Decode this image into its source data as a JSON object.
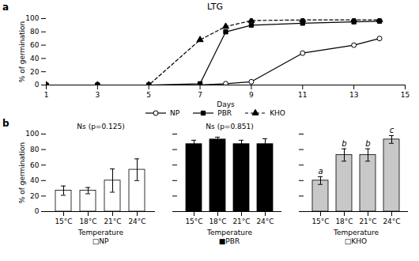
{
  "chart_data": [
    {
      "type": "line",
      "panel_label": "a",
      "title": "LTG",
      "x_label": "Days",
      "y_label": "% of germination",
      "xlim": [
        1,
        15
      ],
      "xticks": [
        1,
        3,
        5,
        7,
        9,
        11,
        13,
        15
      ],
      "ylim": [
        0,
        100
      ],
      "yticks": [
        0,
        20,
        40,
        60,
        80,
        100
      ],
      "grid": false,
      "legend": "bottom",
      "series": [
        {
          "name": "NP",
          "color": "black",
          "marker": "open_circle",
          "line_style": "solid",
          "x": [
            1,
            3,
            5,
            7,
            8,
            9,
            11,
            13,
            14
          ],
          "values": [
            0,
            0,
            0,
            0,
            2,
            5,
            48,
            60,
            70
          ]
        },
        {
          "name": "PBR",
          "color": "black",
          "marker": "square",
          "line_style": "solid",
          "x": [
            1,
            3,
            5,
            7,
            8,
            9,
            11,
            13,
            14
          ],
          "values": [
            0,
            0,
            0,
            2,
            80,
            90,
            93,
            95,
            96
          ]
        },
        {
          "name": "KHO",
          "color": "black",
          "marker": "triangle",
          "line_style": "dashed",
          "x": [
            1,
            3,
            5,
            7,
            8,
            9,
            11,
            13,
            14
          ],
          "values": [
            0,
            0,
            0,
            68,
            88,
            97,
            98,
            98,
            98
          ]
        }
      ]
    },
    {
      "type": "bar",
      "panel_label": "b",
      "x_label": "Temperature",
      "y_label": "% of germination",
      "categories": [
        "15°C",
        "18°C",
        "21°C",
        "24°C"
      ],
      "values": [
        27,
        27,
        40,
        54
      ],
      "errors": [
        6,
        4,
        15,
        14
      ],
      "color": "white",
      "ylim": [
        0,
        100
      ],
      "yticks": [
        0,
        20,
        40,
        60,
        80,
        100
      ],
      "grid": false,
      "annotations": [
        "Ns (p=0.125)"
      ],
      "caption": "□NP"
    },
    {
      "type": "bar",
      "x_label": "Temperature",
      "categories": [
        "15°C",
        "18°C",
        "21°C",
        "24°C"
      ],
      "values": [
        87,
        93,
        87,
        87
      ],
      "errors": [
        5,
        3,
        5,
        7
      ],
      "color": "black",
      "ylim": [
        0,
        100
      ],
      "yticks": [
        0,
        20,
        40,
        60,
        80,
        100
      ],
      "grid": false,
      "tick_labels": "x",
      "annotations": [
        "Ns (p=0.851)"
      ],
      "caption": "■PBR"
    },
    {
      "type": "bar",
      "x_label": "Temperature",
      "categories": [
        "15°C",
        "18°C",
        "21°C",
        "24°C"
      ],
      "values": [
        40,
        73,
        73,
        93
      ],
      "errors": [
        5,
        8,
        8,
        5
      ],
      "color": "#c8c8c8",
      "ylim": [
        0,
        100
      ],
      "yticks": [
        0,
        20,
        40,
        60,
        80,
        100
      ],
      "grid": false,
      "tick_labels": "x",
      "letter_labels": [
        "a",
        "b",
        "b",
        "c"
      ],
      "caption": "□KHO"
    }
  ]
}
